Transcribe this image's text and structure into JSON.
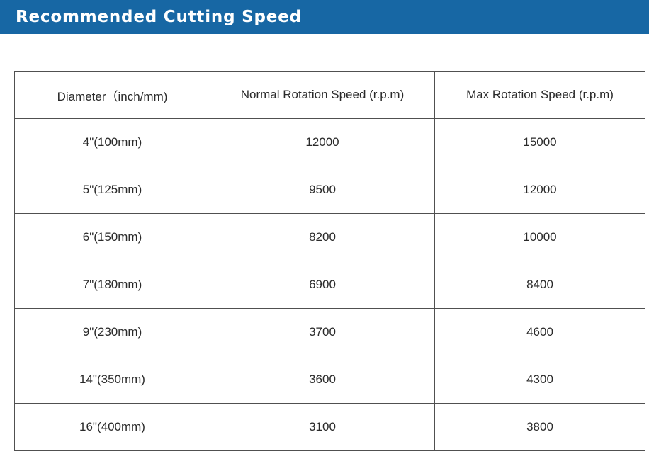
{
  "header": {
    "title": "Recommended Cutting Speed",
    "background_color": "#1767a4",
    "text_color": "#ffffff"
  },
  "table": {
    "columns": [
      "Diameter（inch/mm)",
      "Normal Rotation Speed (r.p.m)",
      "Max Rotation Speed (r.p.m)"
    ],
    "rows": [
      [
        "4\"(100mm)",
        "12000",
        "15000"
      ],
      [
        "5\"(125mm)",
        "9500",
        "12000"
      ],
      [
        "6\"(150mm)",
        "8200",
        "10000"
      ],
      [
        "7\"(180mm)",
        "6900",
        "8400"
      ],
      [
        "9\"(230mm)",
        "3700",
        "4600"
      ],
      [
        "14\"(350mm)",
        "3600",
        "4300"
      ],
      [
        "16\"(400mm)",
        "3100",
        "3800"
      ]
    ]
  }
}
